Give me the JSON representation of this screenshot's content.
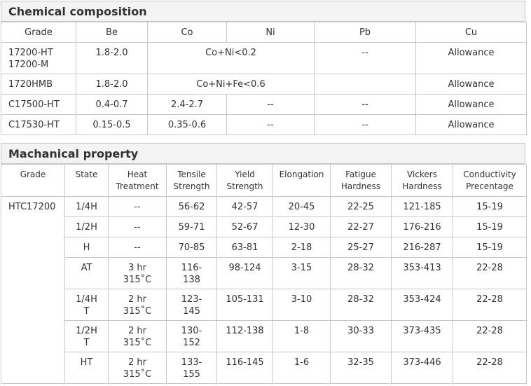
{
  "chemical": {
    "title": "Chemical composition",
    "headers": [
      "Grade",
      "Be",
      "Co",
      "Ni",
      "Pb",
      "Cu"
    ],
    "rows": [
      {
        "grade_line1": "17200-HT",
        "grade_line2": "17200-M",
        "be": "1.8-2.0",
        "co_ni": "Co+Ni<0.2",
        "pb": "--",
        "cu": "Allowance"
      },
      {
        "grade": "1720HMB",
        "be": "1.8-2.0",
        "co_ni_fe": "Co+Ni+Fe<0.6",
        "pb": "",
        "cu": "Allowance"
      },
      {
        "grade": "C17500-HT",
        "be": "0.4-0.7",
        "co": "2.4-2.7",
        "ni": "--",
        "pb": "--",
        "cu": "Allowance"
      },
      {
        "grade": "C17530-HT",
        "be": "0.15-0.5",
        "co": "0.35-0.6",
        "ni": "--",
        "pb": "--",
        "cu": "Allowance"
      }
    ]
  },
  "mechanical": {
    "title": "Machanical property",
    "headers": [
      {
        "l1": "Grade",
        "l2": ""
      },
      {
        "l1": "State",
        "l2": ""
      },
      {
        "l1": "Heat",
        "l2": "Treatment"
      },
      {
        "l1": "Tensile",
        "l2": "Strength"
      },
      {
        "l1": "Yield",
        "l2": "Strength"
      },
      {
        "l1": "Elongation",
        "l2": ""
      },
      {
        "l1": "Fatigue",
        "l2": "Hardness"
      },
      {
        "l1": "Vickers",
        "l2": "Hardness"
      },
      {
        "l1": "Conductivity",
        "l2": "Precentage"
      }
    ],
    "grade": "HTC17200",
    "rows": [
      {
        "state": [
          "1/4H"
        ],
        "heat": [
          "--"
        ],
        "tensile": [
          "56-62"
        ],
        "yield": "42-57",
        "elong": "20-45",
        "fatigue": "22-25",
        "vickers": "121-185",
        "cond": "15-19"
      },
      {
        "state": [
          "1/2H"
        ],
        "heat": [
          "--"
        ],
        "tensile": [
          "59-71"
        ],
        "yield": "52-67",
        "elong": "12-30",
        "fatigue": "22-27",
        "vickers": "176-216",
        "cond": "15-19"
      },
      {
        "state": [
          "H"
        ],
        "heat": [
          "--"
        ],
        "tensile": [
          "70-85"
        ],
        "yield": "63-81",
        "elong": "2-18",
        "fatigue": "25-27",
        "vickers": "216-287",
        "cond": "15-19"
      },
      {
        "state": [
          "AT"
        ],
        "heat": [
          "3 hr",
          "315˚C"
        ],
        "tensile": [
          "116-",
          "138"
        ],
        "yield": "98-124",
        "elong": "3-15",
        "fatigue": "28-32",
        "vickers": "353-413",
        "cond": "22-28"
      },
      {
        "state": [
          "1/4H",
          "T"
        ],
        "heat": [
          "2 hr",
          "315˚C"
        ],
        "tensile": [
          "123-",
          "145"
        ],
        "yield": "105-131",
        "elong": "3-10",
        "fatigue": "28-32",
        "vickers": "353-424",
        "cond": "22-28"
      },
      {
        "state": [
          "1/2H",
          "T"
        ],
        "heat": [
          "2 hr",
          "315˚C"
        ],
        "tensile": [
          "130-",
          "152"
        ],
        "yield": "112-138",
        "elong": "1-8",
        "fatigue": "30-33",
        "vickers": "373-435",
        "cond": "22-28"
      },
      {
        "state": [
          "HT"
        ],
        "heat": [
          "2 hr",
          "315˚C"
        ],
        "tensile": [
          "133-",
          "155"
        ],
        "yield": "116-145",
        "elong": "1-6",
        "fatigue": "32-35",
        "vickers": "373-446",
        "cond": "22-28"
      }
    ]
  }
}
